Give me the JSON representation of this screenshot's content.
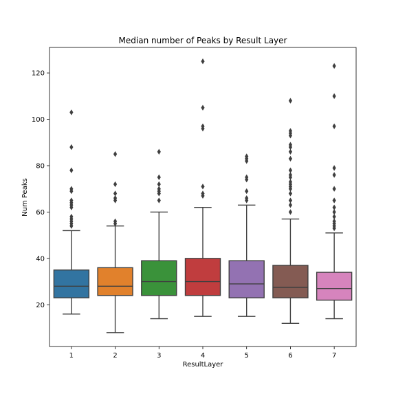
{
  "chart_data": {
    "type": "box",
    "title": "Median number of Peaks by Result Layer",
    "xlabel": "ResultLayer",
    "ylabel": "Num Peaks",
    "ylim": [
      2,
      131
    ],
    "yticks": [
      20,
      40,
      60,
      80,
      100,
      120
    ],
    "grid": false,
    "categories": [
      "1",
      "2",
      "3",
      "4",
      "5",
      "6",
      "7"
    ],
    "colors": [
      "#3274a1",
      "#e1812c",
      "#3a923a",
      "#c03d3e",
      "#9372b2",
      "#845b53",
      "#d684bd"
    ],
    "boxes": [
      {
        "category": "1",
        "whisker_low": 16,
        "q1": 23,
        "median": 28,
        "q3": 35,
        "whisker_high": 52,
        "outliers": [
          54,
          55,
          56,
          57,
          58,
          62,
          63,
          64,
          65,
          69,
          70,
          78,
          88,
          103
        ]
      },
      {
        "category": "2",
        "whisker_low": 8,
        "q1": 24,
        "median": 28,
        "q3": 36,
        "whisker_high": 54,
        "outliers": [
          55,
          56,
          65,
          66,
          68,
          72,
          85
        ]
      },
      {
        "category": "3",
        "whisker_low": 14,
        "q1": 24,
        "median": 30,
        "q3": 39,
        "whisker_high": 60,
        "outliers": [
          65,
          68,
          69,
          70,
          72,
          75,
          86
        ]
      },
      {
        "category": "4",
        "whisker_low": 15,
        "q1": 24,
        "median": 30,
        "q3": 40,
        "whisker_high": 62,
        "outliers": [
          67,
          68,
          71,
          96,
          97,
          105,
          125
        ]
      },
      {
        "category": "5",
        "whisker_low": 15,
        "q1": 23,
        "median": 29,
        "q3": 39,
        "whisker_high": 63,
        "outliers": [
          65,
          66,
          69,
          74,
          75,
          82,
          83,
          84
        ]
      },
      {
        "category": "6",
        "whisker_low": 12,
        "q1": 23,
        "median": 27.5,
        "q3": 37,
        "whisker_high": 57,
        "outliers": [
          60,
          63,
          65,
          68,
          70,
          71,
          72,
          73,
          75,
          76,
          78,
          83,
          86,
          88,
          89,
          93,
          94,
          95,
          108
        ]
      },
      {
        "category": "7",
        "whisker_low": 14,
        "q1": 22,
        "median": 27,
        "q3": 34,
        "whisker_high": 51,
        "outliers": [
          53,
          54,
          55,
          56,
          58,
          60,
          62,
          65,
          70,
          76,
          79,
          97,
          110,
          123
        ]
      }
    ]
  }
}
